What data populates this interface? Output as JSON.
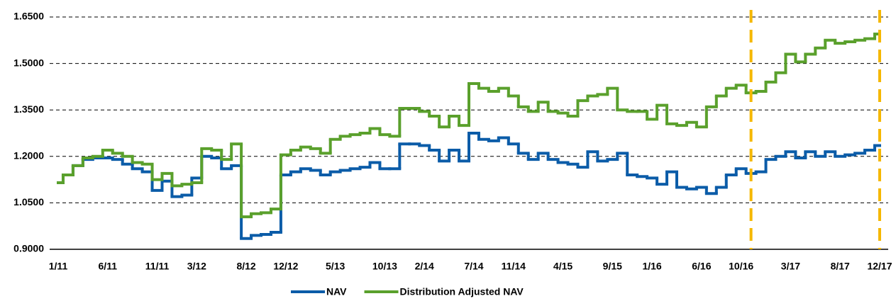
{
  "chart_data": {
    "type": "step",
    "categories": [
      "1/11",
      null,
      null,
      null,
      null,
      "6/11",
      null,
      null,
      null,
      null,
      "11/11",
      null,
      null,
      null,
      "3/12",
      null,
      null,
      null,
      null,
      "8/12",
      null,
      null,
      null,
      "12/12",
      null,
      null,
      null,
      null,
      "5/13",
      null,
      null,
      null,
      null,
      "10/13",
      null,
      null,
      null,
      "2/14",
      null,
      null,
      null,
      null,
      "7/14",
      null,
      null,
      null,
      "11/14",
      null,
      null,
      null,
      null,
      "4/15",
      null,
      null,
      null,
      null,
      "9/15",
      null,
      null,
      null,
      "1/16",
      null,
      null,
      null,
      null,
      "6/16",
      null,
      null,
      null,
      "10/16",
      null,
      null,
      null,
      null,
      "3/17",
      null,
      null,
      null,
      null,
      "8/17",
      null,
      null,
      null,
      "12/17"
    ],
    "series": [
      {
        "name": "NAV",
        "color": "#0b5ca8",
        "values": [
          1.115,
          1.14,
          1.17,
          1.19,
          1.195,
          1.195,
          1.19,
          1.175,
          1.16,
          1.15,
          1.09,
          1.12,
          1.07,
          1.075,
          1.13,
          1.2,
          1.195,
          1.16,
          1.17,
          0.935,
          0.945,
          0.948,
          0.955,
          1.14,
          1.15,
          1.16,
          1.155,
          1.14,
          1.15,
          1.155,
          1.16,
          1.165,
          1.18,
          1.16,
          1.16,
          1.24,
          1.24,
          1.235,
          1.22,
          1.185,
          1.22,
          1.185,
          1.275,
          1.255,
          1.25,
          1.26,
          1.24,
          1.21,
          1.19,
          1.21,
          1.19,
          1.18,
          1.175,
          1.165,
          1.215,
          1.185,
          1.19,
          1.21,
          1.14,
          1.135,
          1.13,
          1.11,
          1.15,
          1.1,
          1.095,
          1.1,
          1.08,
          1.1,
          1.14,
          1.16,
          1.145,
          1.15,
          1.19,
          1.2,
          1.215,
          1.195,
          1.215,
          1.2,
          1.215,
          1.2,
          1.205,
          1.21,
          1.22,
          1.235
        ]
      },
      {
        "name": "Distribution Adjusted NAV",
        "color": "#5aa02c",
        "values": [
          1.115,
          1.14,
          1.17,
          1.195,
          1.2,
          1.22,
          1.21,
          1.2,
          1.18,
          1.175,
          1.125,
          1.145,
          1.105,
          1.11,
          1.115,
          1.225,
          1.22,
          1.19,
          1.24,
          1.005,
          1.015,
          1.018,
          1.03,
          1.205,
          1.22,
          1.23,
          1.225,
          1.21,
          1.255,
          1.265,
          1.27,
          1.275,
          1.29,
          1.27,
          1.265,
          1.355,
          1.355,
          1.345,
          1.33,
          1.295,
          1.33,
          1.3,
          1.435,
          1.42,
          1.41,
          1.42,
          1.395,
          1.36,
          1.345,
          1.375,
          1.345,
          1.34,
          1.33,
          1.38,
          1.395,
          1.4,
          1.42,
          1.35,
          1.345,
          1.345,
          1.32,
          1.365,
          1.305,
          1.3,
          1.31,
          1.295,
          1.36,
          1.395,
          1.42,
          1.43,
          1.405,
          1.41,
          1.44,
          1.47,
          1.53,
          1.505,
          1.53,
          1.55,
          1.575,
          1.565,
          1.57,
          1.575,
          1.58,
          1.595
        ]
      }
    ],
    "ylim": [
      0.9,
      1.65
    ],
    "yticks": [
      {
        "value": 0.9,
        "label": "0.9000"
      },
      {
        "value": 1.05,
        "label": "1.0500"
      },
      {
        "value": 1.2,
        "label": "1.2000"
      },
      {
        "value": 1.35,
        "label": "1.3500"
      },
      {
        "value": 1.5,
        "label": "1.5000"
      },
      {
        "value": 1.65,
        "label": "1.6500"
      }
    ],
    "grid": true,
    "legend": "bottom",
    "reference_lines": {
      "color": "#f5b800",
      "at": [
        70,
        83
      ]
    }
  }
}
